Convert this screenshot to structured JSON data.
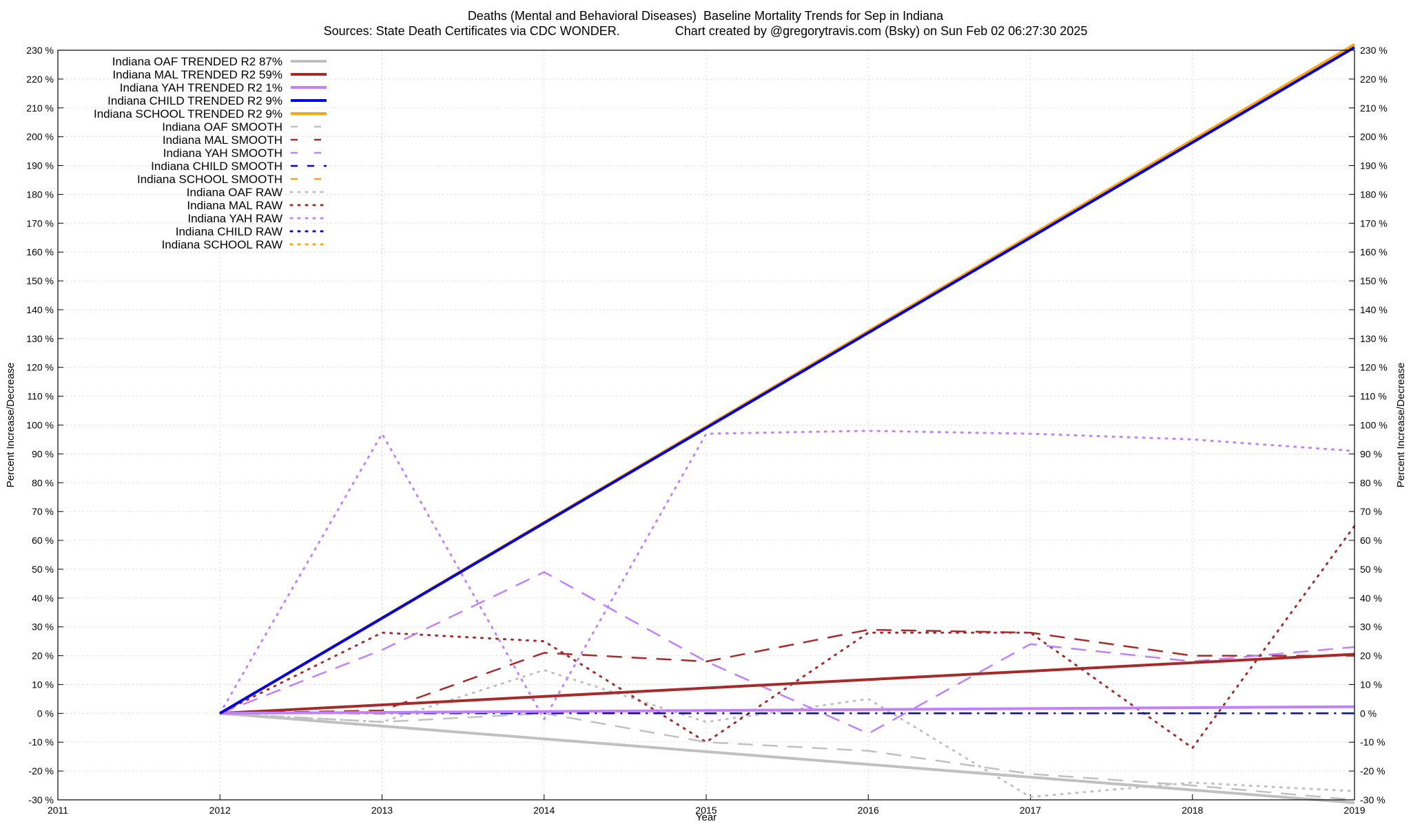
{
  "title_line1": "Deaths (Mental and Behavioral Diseases)  Baseline Mortality Trends for Sep in Indiana",
  "title_line2": "Sources: State Death Certificates via CDC WONDER.                Chart created by @gregorytravis.com (Bsky) on Sun Feb 02 06:27:30 2025",
  "chart_data": {
    "type": "line",
    "title": "Deaths (Mental and Behavioral Diseases)  Baseline Mortality Trends for Sep in Indiana",
    "subtitle": "Sources: State Death Certificates via CDC WONDER.                Chart created by @gregorytravis.com (Bsky) on Sun Feb 02 06:27:30 2025",
    "xlabel": "Year",
    "ylabel": "Percent Increase/Decrease",
    "xlim": [
      2011,
      2019
    ],
    "ylim": [
      -30,
      230
    ],
    "xticks": [
      2011,
      2012,
      2013,
      2014,
      2015,
      2016,
      2017,
      2018,
      2019
    ],
    "yticks": [
      -30,
      -20,
      -10,
      0,
      10,
      20,
      30,
      40,
      50,
      60,
      70,
      80,
      90,
      100,
      110,
      120,
      130,
      140,
      150,
      160,
      170,
      180,
      190,
      200,
      210,
      220,
      230
    ],
    "ytick_suffix": " %",
    "grid": true,
    "legend_position": "top-left",
    "series": [
      {
        "name": "Indiana OAF TRENDED R2  87%",
        "color": "#c0c0c0",
        "style": "solid",
        "width": 4,
        "x": [
          2012,
          2019
        ],
        "y": [
          0,
          -31
        ]
      },
      {
        "name": "Indiana MAL TRENDED R2  59%",
        "color": "#a52a2a",
        "style": "solid",
        "width": 4,
        "x": [
          2012,
          2019
        ],
        "y": [
          0,
          20.5
        ]
      },
      {
        "name": "Indiana YAH TRENDED R2  1%",
        "color": "#c080ff",
        "style": "solid",
        "width": 4,
        "x": [
          2012,
          2019
        ],
        "y": [
          0,
          2.3
        ]
      },
      {
        "name": "Indiana CHILD TRENDED R2  9%",
        "color": "#0000ee",
        "style": "solid",
        "width": 4,
        "x": [
          2012,
          2019
        ],
        "y": [
          0,
          231
        ]
      },
      {
        "name": "Indiana SCHOOL TRENDED R2  9%",
        "color": "#ffa500",
        "style": "solid",
        "width": 4,
        "x": [
          2012,
          2019
        ],
        "y": [
          0,
          232
        ]
      },
      {
        "name": "Indiana OAF SMOOTH",
        "color": "#c0c0c0",
        "style": "dashed",
        "width": 2.5,
        "x": [
          2012,
          2013,
          2014,
          2015,
          2016,
          2017,
          2018,
          2019
        ],
        "y": [
          0,
          -3,
          0,
          -10,
          -13,
          -21,
          -25,
          -30
        ]
      },
      {
        "name": "Indiana MAL SMOOTH",
        "color": "#a52a2a",
        "style": "dashed",
        "width": 2.5,
        "x": [
          2012,
          2013,
          2014,
          2015,
          2016,
          2017,
          2018,
          2019
        ],
        "y": [
          0,
          1,
          21,
          18,
          29,
          28,
          20,
          20
        ]
      },
      {
        "name": "Indiana YAH SMOOTH",
        "color": "#c080ff",
        "style": "dashed",
        "width": 2.5,
        "x": [
          2012,
          2013,
          2014,
          2015,
          2016,
          2017,
          2018,
          2019
        ],
        "y": [
          0,
          22,
          49,
          18,
          -7,
          24,
          18,
          23
        ]
      },
      {
        "name": "Indiana CHILD SMOOTH",
        "color": "#0000ee",
        "style": "dashdot",
        "width": 2.5,
        "x": [
          2012,
          2013,
          2014,
          2015,
          2016,
          2017,
          2018,
          2019
        ],
        "y": [
          0,
          0,
          0,
          0,
          0,
          0,
          0,
          0
        ]
      },
      {
        "name": "Indiana SCHOOL SMOOTH",
        "color": "#ffa500",
        "style": "dashed",
        "width": 2.5,
        "x": [
          2012,
          2019
        ],
        "y": [
          0,
          232
        ]
      },
      {
        "name": "Indiana OAF RAW",
        "color": "#c0c0c0",
        "style": "dotted",
        "width": 3,
        "x": [
          2012,
          2013,
          2014,
          2015,
          2016,
          2017,
          2018,
          2019
        ],
        "y": [
          0,
          -3,
          15,
          -3,
          5,
          -29,
          -24,
          -27
        ]
      },
      {
        "name": "Indiana MAL RAW",
        "color": "#a52a2a",
        "style": "dotted",
        "width": 3,
        "x": [
          2012,
          2013,
          2014,
          2015,
          2016,
          2017,
          2018,
          2019
        ],
        "y": [
          0,
          28,
          25,
          -10,
          28,
          28,
          -12,
          65
        ]
      },
      {
        "name": "Indiana YAH RAW",
        "color": "#c080ff",
        "style": "dotted",
        "width": 3,
        "x": [
          2012,
          2013,
          2014,
          2015,
          2016,
          2017,
          2018,
          2019
        ],
        "y": [
          0,
          97,
          -2,
          97,
          98,
          97,
          95,
          91
        ]
      },
      {
        "name": "Indiana CHILD RAW",
        "color": "#0000ee",
        "style": "dotted",
        "width": 3,
        "x": [
          2012,
          2019
        ],
        "y": [
          0,
          231
        ]
      },
      {
        "name": "Indiana SCHOOL RAW",
        "color": "#ffa500",
        "style": "dotted",
        "width": 3,
        "x": [
          2012,
          2019
        ],
        "y": [
          0,
          232
        ]
      }
    ]
  }
}
